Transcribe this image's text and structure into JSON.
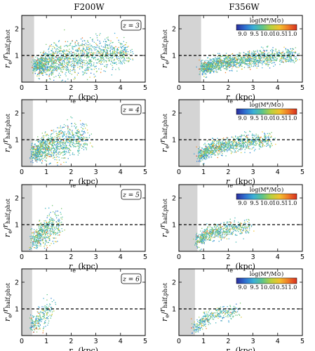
{
  "figure": {
    "columns": [
      "F200W",
      "F356W"
    ],
    "colorbar": {
      "label": "log(M*/M⊙)",
      "ticks": [
        "9.0",
        "9.5",
        "10.0",
        "10.5",
        "11.0"
      ],
      "range": [
        8.75,
        11.25
      ],
      "colors": [
        "#2a2c9c",
        "#2f6fd0",
        "#3bb0d6",
        "#5cc48a",
        "#b7d13e",
        "#f2c12e",
        "#f07b27",
        "#d7301f"
      ]
    },
    "axes": {
      "ylabel": "r_e / r_half,phot",
      "xlabel": "r_e (kpc)",
      "xticks": [
        "0",
        "1",
        "2",
        "3",
        "4",
        "5"
      ],
      "yticks": [
        "1",
        "2"
      ]
    }
  },
  "chart_data": [
    {
      "type": "scatter",
      "row": 0,
      "col": 0,
      "filter": "F200W",
      "annotation": "z = 3",
      "xlim": [
        0,
        5
      ],
      "ylim": [
        0,
        2.5
      ],
      "reference_line_y": 1,
      "shaded_x": [
        0,
        0.5
      ],
      "density": [
        [
          0.6,
          0.62,
          0.14
        ],
        [
          1.2,
          0.78,
          0.3
        ],
        [
          1.9,
          0.88,
          0.35
        ],
        [
          2.7,
          0.98,
          0.34
        ],
        [
          3.5,
          1.05,
          0.28
        ],
        [
          4.3,
          1.1,
          0.22
        ]
      ],
      "n_points": 1600
    },
    {
      "type": "scatter",
      "row": 0,
      "col": 1,
      "filter": "F356W",
      "annotation": "",
      "colorbar": true,
      "xlim": [
        0,
        5
      ],
      "ylim": [
        0,
        2.5
      ],
      "reference_line_y": 1,
      "shaded_x": [
        0,
        0.9
      ],
      "density": [
        [
          1.0,
          0.55,
          0.12
        ],
        [
          1.6,
          0.72,
          0.14
        ],
        [
          2.4,
          0.82,
          0.15
        ],
        [
          3.2,
          0.9,
          0.15
        ],
        [
          4.0,
          0.96,
          0.15
        ],
        [
          4.7,
          1.0,
          0.14
        ]
      ],
      "n_points": 1500
    },
    {
      "type": "scatter",
      "row": 1,
      "col": 0,
      "filter": "F200W",
      "annotation": "z = 4",
      "xlim": [
        0,
        5
      ],
      "ylim": [
        0,
        2.5
      ],
      "reference_line_y": 1,
      "shaded_x": [
        0,
        0.45
      ],
      "density": [
        [
          0.5,
          0.5,
          0.16
        ],
        [
          0.9,
          0.7,
          0.25
        ],
        [
          1.4,
          0.85,
          0.32
        ],
        [
          2.0,
          0.98,
          0.32
        ],
        [
          2.6,
          1.05,
          0.28
        ]
      ],
      "n_points": 1000
    },
    {
      "type": "scatter",
      "row": 1,
      "col": 1,
      "filter": "F356W",
      "annotation": "",
      "colorbar": true,
      "xlim": [
        0,
        5
      ],
      "ylim": [
        0,
        2.5
      ],
      "reference_line_y": 1,
      "shaded_x": [
        0,
        0.85
      ],
      "density": [
        [
          0.9,
          0.45,
          0.12
        ],
        [
          1.3,
          0.68,
          0.14
        ],
        [
          1.9,
          0.8,
          0.15
        ],
        [
          2.5,
          0.88,
          0.15
        ],
        [
          3.1,
          0.94,
          0.15
        ],
        [
          3.7,
          0.98,
          0.14
        ]
      ],
      "n_points": 1000
    },
    {
      "type": "scatter",
      "row": 2,
      "col": 0,
      "filter": "F200W",
      "annotation": "z = 5",
      "xlim": [
        0,
        5
      ],
      "ylim": [
        0,
        2.5
      ],
      "reference_line_y": 1,
      "shaded_x": [
        0,
        0.42
      ],
      "density": [
        [
          0.5,
          0.45,
          0.18
        ],
        [
          0.8,
          0.68,
          0.24
        ],
        [
          1.1,
          0.88,
          0.28
        ],
        [
          1.5,
          1.0,
          0.28
        ]
      ],
      "n_points": 500
    },
    {
      "type": "scatter",
      "row": 2,
      "col": 1,
      "filter": "F356W",
      "annotation": "",
      "colorbar": true,
      "xlim": [
        0,
        5
      ],
      "ylim": [
        0,
        2.5
      ],
      "reference_line_y": 1,
      "shaded_x": [
        0,
        0.75
      ],
      "density": [
        [
          0.8,
          0.4,
          0.12
        ],
        [
          1.1,
          0.66,
          0.14
        ],
        [
          1.6,
          0.78,
          0.14
        ],
        [
          2.2,
          0.86,
          0.15
        ],
        [
          2.8,
          0.92,
          0.15
        ]
      ],
      "n_points": 600
    },
    {
      "type": "scatter",
      "row": 3,
      "col": 0,
      "filter": "F200W",
      "annotation": "z = 6",
      "xlim": [
        0,
        5
      ],
      "ylim": [
        0,
        2.5
      ],
      "reference_line_y": 1,
      "shaded_x": [
        0,
        0.42
      ],
      "density": [
        [
          0.45,
          0.42,
          0.16
        ],
        [
          0.7,
          0.62,
          0.22
        ],
        [
          1.0,
          0.82,
          0.26
        ],
        [
          1.2,
          0.92,
          0.25
        ]
      ],
      "n_points": 220
    },
    {
      "type": "scatter",
      "row": 3,
      "col": 1,
      "filter": "F356W",
      "annotation": "",
      "colorbar": true,
      "xlim": [
        0,
        5
      ],
      "ylim": [
        0,
        2.5
      ],
      "reference_line_y": 1,
      "shaded_x": [
        0,
        0.65
      ],
      "density": [
        [
          0.7,
          0.35,
          0.12
        ],
        [
          1.0,
          0.62,
          0.14
        ],
        [
          1.4,
          0.76,
          0.14
        ],
        [
          1.9,
          0.84,
          0.15
        ],
        [
          2.4,
          0.9,
          0.15
        ]
      ],
      "n_points": 320
    }
  ]
}
